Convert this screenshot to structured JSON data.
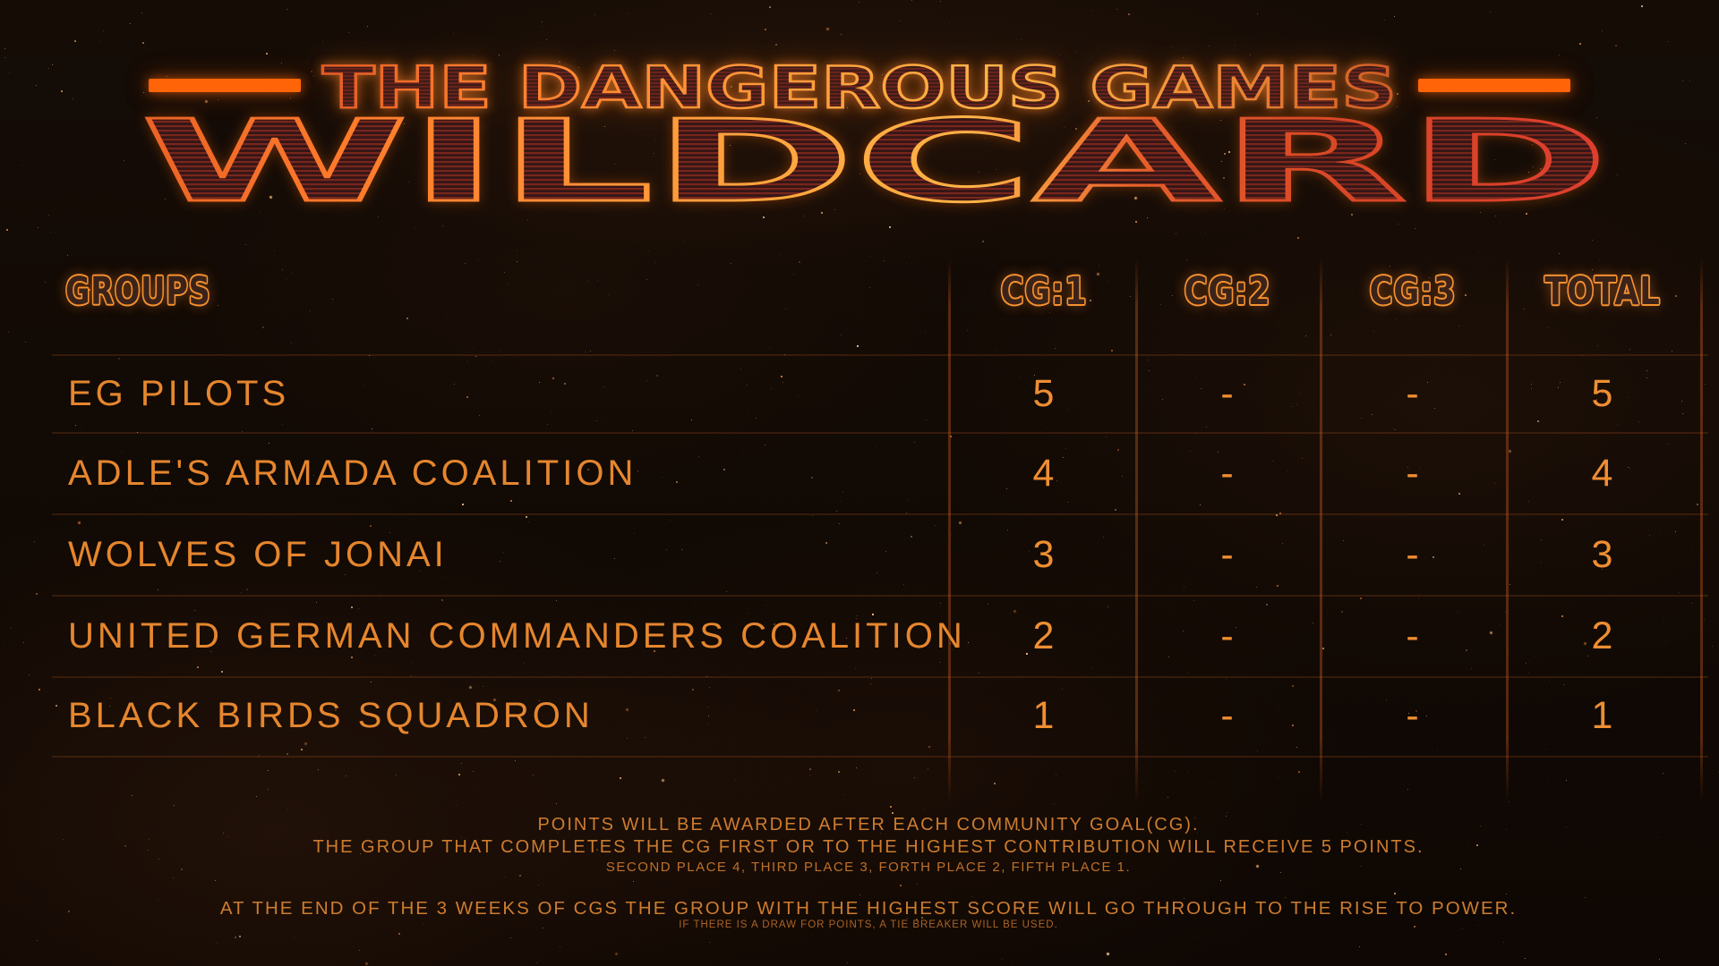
{
  "banner": {
    "title": "THE DANGEROUS GAMES",
    "subtitle": "WILDCARD"
  },
  "table": {
    "groups_header": "GROUPS",
    "columns": [
      "CG:1",
      "CG:2",
      "CG:3",
      "TOTAL"
    ],
    "rows": [
      {
        "group": "EG PILOTS",
        "values": [
          "5",
          "-",
          "-",
          "5"
        ]
      },
      {
        "group": "ADLE'S ARMADA COALITION",
        "values": [
          "4",
          "-",
          "-",
          "4"
        ]
      },
      {
        "group": "WOLVES OF JONAI",
        "values": [
          "3",
          "-",
          "-",
          "3"
        ]
      },
      {
        "group": "UNITED GERMAN COMMANDERS COALITION",
        "values": [
          "2",
          "-",
          "-",
          "2"
        ]
      },
      {
        "group": "BLACK BIRDS SQUADRON",
        "values": [
          "1",
          "-",
          "-",
          "1"
        ]
      }
    ]
  },
  "footer": {
    "line1": "POINTS WILL BE AWARDED AFTER EACH COMMUNITY GOAL(CG).",
    "line2": "THE GROUP THAT COMPLETES THE CG FIRST OR TO THE HIGHEST CONTRIBUTION WILL RECEIVE 5 POINTS.",
    "line3": "SECOND PLACE 4, THIRD PLACE 3, FORTH PLACE 2, FIFTH PLACE 1.",
    "line4": "AT THE END OF THE 3 WEEKS OF CGS THE GROUP WITH THE HIGHEST SCORE WILL GO THROUGH TO THE RISE TO POWER.",
    "line5": "IF THERE IS A DRAW FOR POINTS, A TIE BREAKER WILL BE USED."
  },
  "colors": {
    "accent_bar": "#ff6408",
    "title_stroke": "#ff8f33",
    "header_outline": "#f6912f",
    "row_text": "#e5862e",
    "value_text": "#ef8e32",
    "footer_text": "#cd7c2f",
    "grid_line": "#c65e1c",
    "background": "#0e0703"
  }
}
